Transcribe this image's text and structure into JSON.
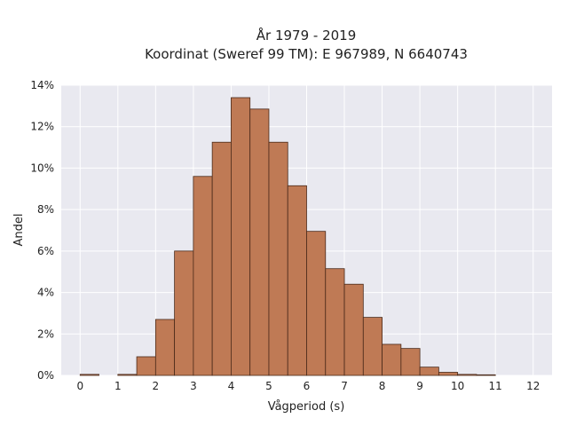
{
  "chart_data": {
    "type": "bar",
    "title": "År 1979 - 2019",
    "subtitle": "Koordinat (Sweref 99 TM): E 967989, N 6640743",
    "xlabel": "Vågperiod (s)",
    "ylabel": "Andel",
    "bin_width": 0.5,
    "bin_starts": [
      0,
      0.5,
      1,
      1.5,
      2,
      2.5,
      3,
      3.5,
      4,
      4.5,
      5,
      5.5,
      6,
      6.5,
      7,
      7.5,
      8,
      8.5,
      9,
      9.5,
      10,
      10.5,
      11,
      11.5
    ],
    "values": [
      0.05,
      0.0,
      0.05,
      0.9,
      2.7,
      6.0,
      9.6,
      11.25,
      13.4,
      12.85,
      11.25,
      9.15,
      6.95,
      5.15,
      4.4,
      2.8,
      1.5,
      1.3,
      0.4,
      0.15,
      0.05,
      0.03,
      0.0,
      0.0
    ],
    "xlim": [
      -0.5,
      12.5
    ],
    "ylim": [
      0,
      14
    ],
    "xticks": [
      0,
      1,
      2,
      3,
      4,
      5,
      6,
      7,
      8,
      9,
      10,
      11,
      12
    ],
    "yticks": [
      0,
      2,
      4,
      6,
      8,
      10,
      12,
      14
    ],
    "ytick_labels": [
      "0%",
      "2%",
      "4%",
      "6%",
      "8%",
      "10%",
      "12%",
      "14%"
    ],
    "grid": true,
    "colors": {
      "bar_fill": "#bf7a55",
      "bar_edge": "#4a2a1a",
      "plot_bg": "#e9e9f0",
      "grid": "#ffffff"
    }
  }
}
